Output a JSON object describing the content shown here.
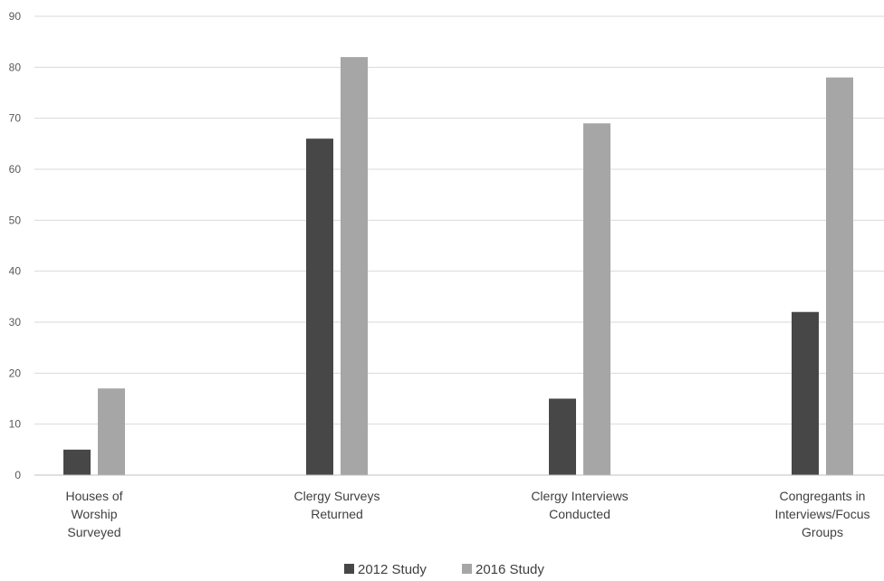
{
  "chart_data": {
    "type": "bar",
    "title": "",
    "xlabel": "",
    "ylabel": "",
    "ylim": [
      0,
      90
    ],
    "yticks": [
      0,
      10,
      20,
      30,
      40,
      50,
      60,
      70,
      80,
      90
    ],
    "grid": true,
    "legend_position": "bottom-center",
    "categories": [
      [
        "Houses of",
        "Worship",
        "Surveyed"
      ],
      [
        "Clergy Surveys",
        "Returned"
      ],
      [
        "Clergy Interviews",
        "Conducted"
      ],
      [
        "Congregants in",
        "Interviews/Focus",
        "Groups"
      ]
    ],
    "series": [
      {
        "name": "2012 Study",
        "color": "#474747",
        "values": [
          5,
          66,
          15,
          32
        ]
      },
      {
        "name": "2016 Study",
        "color": "#a6a6a6",
        "values": [
          17,
          82,
          69,
          78
        ]
      }
    ]
  }
}
